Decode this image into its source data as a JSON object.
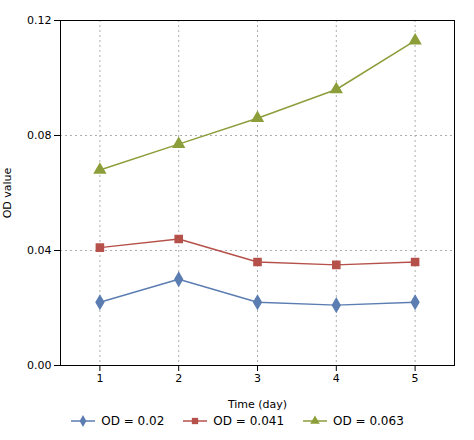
{
  "chart_data": {
    "type": "line",
    "x": [
      1,
      2,
      3,
      4,
      5
    ],
    "series": [
      {
        "name": "OD = 0.02",
        "color": "#5B7DB1",
        "marker": "diamond",
        "values": [
          0.022,
          0.03,
          0.022,
          0.021,
          0.022
        ]
      },
      {
        "name": "OD = 0.041",
        "color": "#B5514A",
        "marker": "square",
        "values": [
          0.041,
          0.044,
          0.036,
          0.035,
          0.036
        ]
      },
      {
        "name": "OD = 0.063",
        "color": "#8B9E3A",
        "marker": "triangle",
        "values": [
          0.068,
          0.077,
          0.086,
          0.096,
          0.113
        ]
      }
    ],
    "x_label": "Time (day)",
    "y_label": "OD value",
    "xlim": [
      0.5,
      5.5
    ],
    "ylim": [
      0.0,
      0.12
    ],
    "xticks": [
      1,
      2,
      3,
      4,
      5
    ],
    "yticks": [
      {
        "value": 0.0,
        "label": "0.00"
      },
      0.04,
      0.08,
      0.12
    ],
    "grid": true,
    "legend": "bottom"
  }
}
